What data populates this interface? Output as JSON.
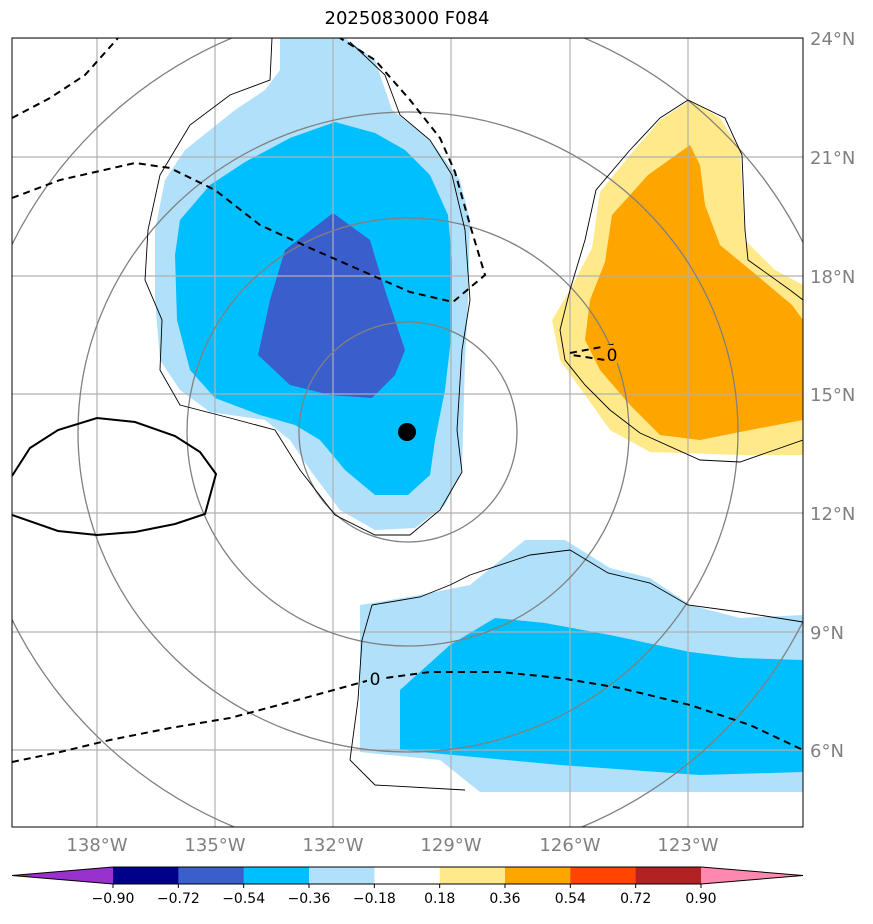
{
  "title": "2025083000 F084",
  "map": {
    "lat_labels": [
      "24°N",
      "21°N",
      "18°N",
      "15°N",
      "12°N",
      "9°N",
      "6°N"
    ],
    "lon_labels": [
      "138°W",
      "135°W",
      "132°W",
      "129°W",
      "126°W",
      "123°W"
    ],
    "contour_labels": [
      "0",
      "0"
    ],
    "storm_center": {
      "lat": 14.1,
      "lon": "130.2°W"
    }
  },
  "colorbar": {
    "ticks": [
      "−0.90",
      "−0.72",
      "−0.54",
      "−0.36",
      "−0.18",
      "0.18",
      "0.36",
      "0.54",
      "0.72",
      "0.90"
    ],
    "colors": [
      "#9932cc",
      "#00008b",
      "#3a5fcd",
      "#00bfff",
      "#b0e0fa",
      "#ffffff",
      "#ffe98a",
      "#ffa500",
      "#ff4500",
      "#b22222",
      "#ff88b0"
    ]
  }
}
